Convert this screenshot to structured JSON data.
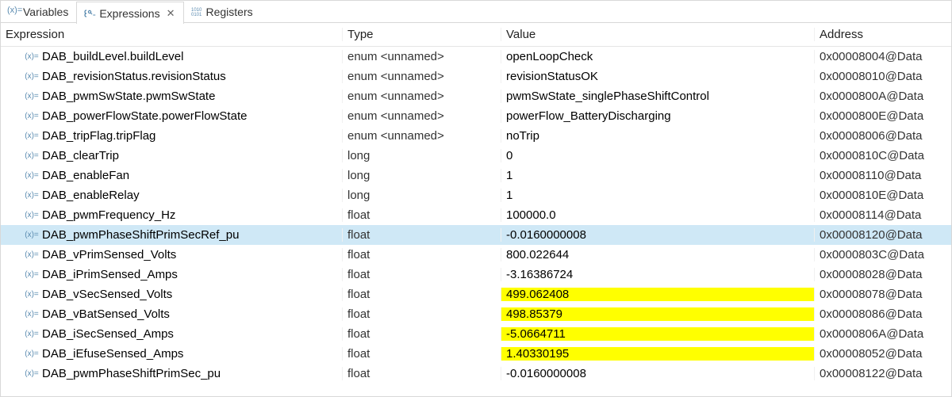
{
  "tabs": {
    "variables": {
      "label": "Variables"
    },
    "expressions": {
      "label": "Expressions"
    },
    "registers": {
      "label": "Registers"
    }
  },
  "headers": {
    "expression": "Expression",
    "type": "Type",
    "value": "Value",
    "address": "Address"
  },
  "rows": [
    {
      "expr": "DAB_buildLevel.buildLevel",
      "type": "enum <unnamed>",
      "value": "openLoopCheck",
      "addr": "0x00008004@Data",
      "selected": false,
      "hl": false
    },
    {
      "expr": "DAB_revisionStatus.revisionStatus",
      "type": "enum <unnamed>",
      "value": "revisionStatusOK",
      "addr": "0x00008010@Data",
      "selected": false,
      "hl": false
    },
    {
      "expr": "DAB_pwmSwState.pwmSwState",
      "type": "enum <unnamed>",
      "value": "pwmSwState_singlePhaseShiftControl",
      "addr": "0x0000800A@Data",
      "selected": false,
      "hl": false
    },
    {
      "expr": "DAB_powerFlowState.powerFlowState",
      "type": "enum <unnamed>",
      "value": "powerFlow_BatteryDischarging",
      "addr": "0x0000800E@Data",
      "selected": false,
      "hl": false
    },
    {
      "expr": "DAB_tripFlag.tripFlag",
      "type": "enum <unnamed>",
      "value": "noTrip",
      "addr": "0x00008006@Data",
      "selected": false,
      "hl": false
    },
    {
      "expr": "DAB_clearTrip",
      "type": "long",
      "value": "0",
      "addr": "0x0000810C@Data",
      "selected": false,
      "hl": false
    },
    {
      "expr": "DAB_enableFan",
      "type": "long",
      "value": "1",
      "addr": "0x00008110@Data",
      "selected": false,
      "hl": false
    },
    {
      "expr": "DAB_enableRelay",
      "type": "long",
      "value": "1",
      "addr": "0x0000810E@Data",
      "selected": false,
      "hl": false
    },
    {
      "expr": "DAB_pwmFrequency_Hz",
      "type": "float",
      "value": "100000.0",
      "addr": "0x00008114@Data",
      "selected": false,
      "hl": false
    },
    {
      "expr": "DAB_pwmPhaseShiftPrimSecRef_pu",
      "type": "float",
      "value": "-0.0160000008",
      "addr": "0x00008120@Data",
      "selected": true,
      "hl": false
    },
    {
      "expr": "DAB_vPrimSensed_Volts",
      "type": "float",
      "value": "800.022644",
      "addr": "0x0000803C@Data",
      "selected": false,
      "hl": false
    },
    {
      "expr": "DAB_iPrimSensed_Amps",
      "type": "float",
      "value": "-3.16386724",
      "addr": "0x00008028@Data",
      "selected": false,
      "hl": false
    },
    {
      "expr": "DAB_vSecSensed_Volts",
      "type": "float",
      "value": "499.062408",
      "addr": "0x00008078@Data",
      "selected": false,
      "hl": true
    },
    {
      "expr": "DAB_vBatSensed_Volts",
      "type": "float",
      "value": "498.85379",
      "addr": "0x00008086@Data",
      "selected": false,
      "hl": true
    },
    {
      "expr": "DAB_iSecSensed_Amps",
      "type": "float",
      "value": "-5.0664711",
      "addr": "0x0000806A@Data",
      "selected": false,
      "hl": true
    },
    {
      "expr": "DAB_iEfuseSensed_Amps",
      "type": "float",
      "value": "1.40330195",
      "addr": "0x00008052@Data",
      "selected": false,
      "hl": true
    },
    {
      "expr": "DAB_pwmPhaseShiftPrimSec_pu",
      "type": "float",
      "value": "-0.0160000008",
      "addr": "0x00008122@Data",
      "selected": false,
      "hl": false
    }
  ],
  "colors": {
    "selected_bg": "#cfe8f6",
    "highlight_bg": "#ffff00",
    "icon_color": "#5a8bb0"
  }
}
